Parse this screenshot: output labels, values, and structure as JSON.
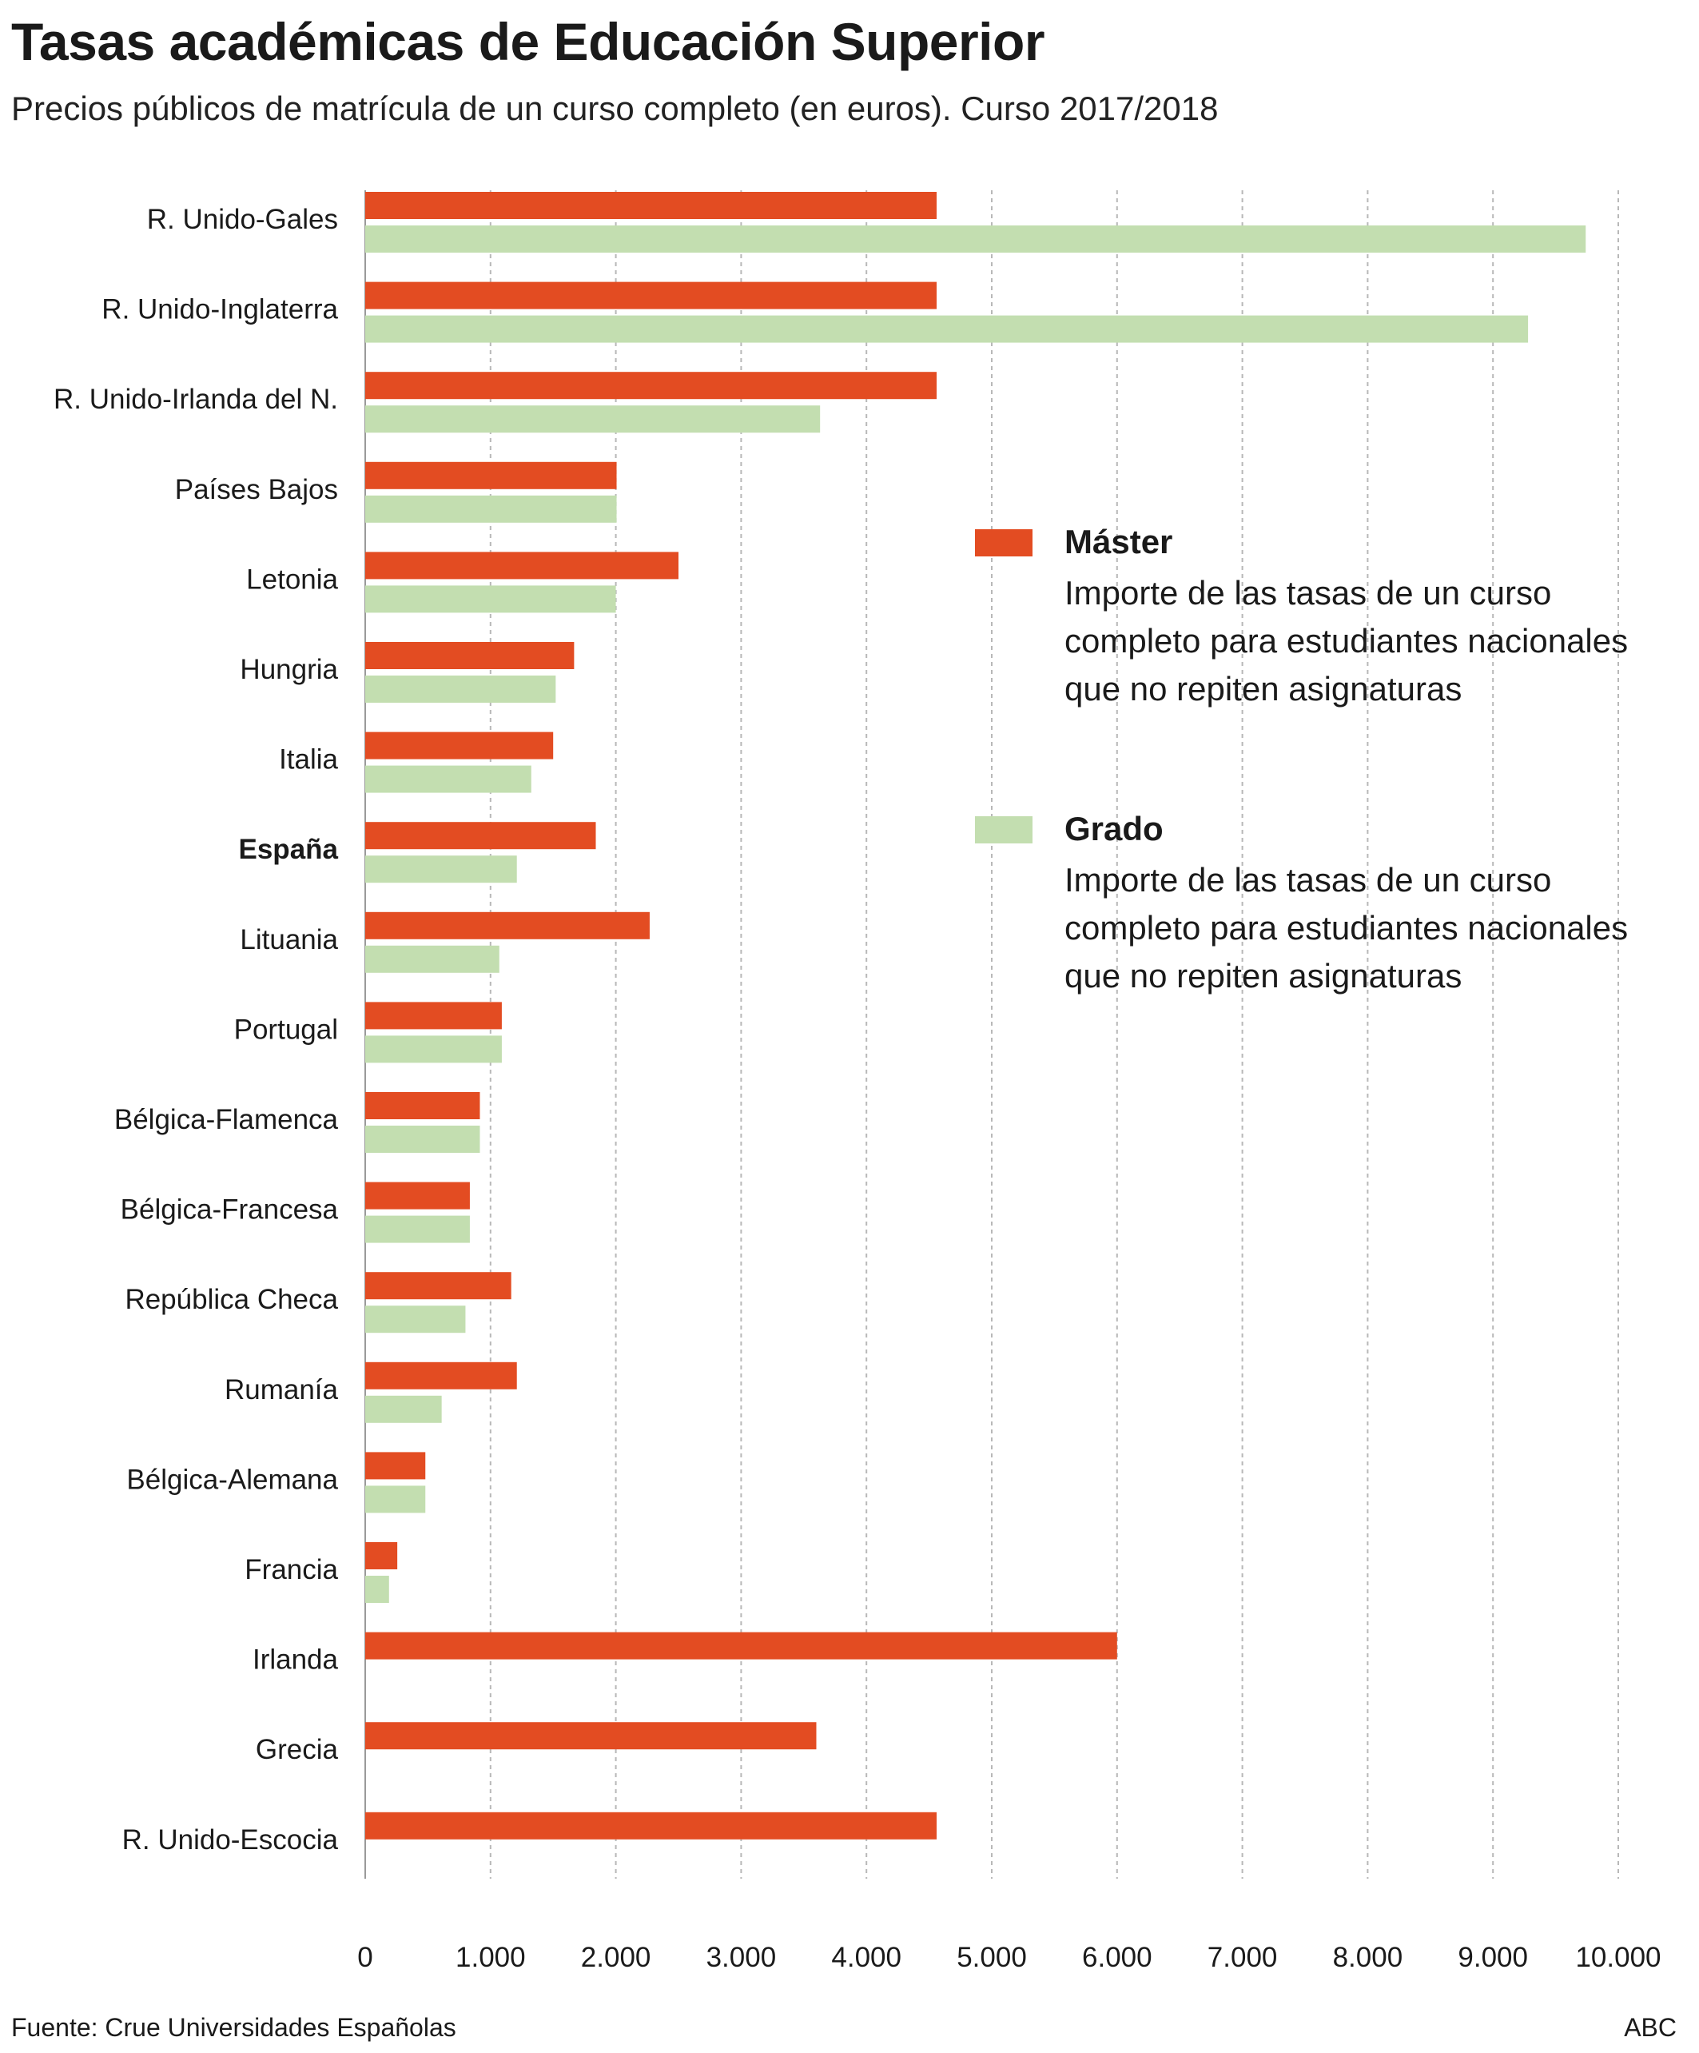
{
  "header": {
    "title": "Tasas académicas de Educación Superior",
    "subtitle": "Precios públicos de matrícula de un curso completo (en euros). Curso 2017/2018"
  },
  "legend": {
    "master": {
      "name": "Máster",
      "description": "Importe de las tasas de un curso completo para estudiantes nacionales que no repiten asignaturas",
      "color": "#e34c22"
    },
    "grado": {
      "name": "Grado",
      "description": "Importe de las tasas de un curso completo para estudiantes nacionales que no repiten asignaturas",
      "color": "#c3deb0"
    }
  },
  "footer": {
    "source": "Fuente: Crue Universidades Españolas",
    "credit": "ABC"
  },
  "chart_data": {
    "type": "bar",
    "orientation": "horizontal",
    "categories": [
      "R. Unido-Gales",
      "R. Unido-Inglaterra",
      "R. Unido-Irlanda del N.",
      "Países Bajos",
      "Letonia",
      "Hungria",
      "Italia",
      "España",
      "Lituania",
      "Portugal",
      "Bélgica-Flamenca",
      "Bélgica-Francesa",
      "República Checa",
      "Rumanía",
      "Bélgica-Alemana",
      "Francia",
      "Irlanda",
      "Grecia",
      "R. Unido-Escocia"
    ],
    "highlighted_category": "España",
    "series": [
      {
        "name": "Máster",
        "color": "#e34c22",
        "values": [
          4560,
          4560,
          4560,
          2006,
          2500,
          1667,
          1500,
          1840,
          2270,
          1090,
          915,
          835,
          1165,
          1210,
          480,
          256,
          6000,
          3600,
          4560
        ]
      },
      {
        "name": "Grado",
        "color": "#c3deb0",
        "values": [
          9740,
          9280,
          3630,
          2006,
          2000,
          1520,
          1325,
          1210,
          1070,
          1090,
          915,
          835,
          800,
          610,
          480,
          190,
          null,
          null,
          null
        ]
      }
    ],
    "xlim": [
      0,
      10000
    ],
    "xticks": [
      0,
      1000,
      2000,
      3000,
      4000,
      5000,
      6000,
      7000,
      8000,
      9000,
      10000
    ],
    "xtick_labels": [
      "0",
      "1.000",
      "2.000",
      "3.000",
      "4.000",
      "5.000",
      "6.000",
      "7.000",
      "8.000",
      "9.000",
      "10.000"
    ],
    "grid": "vertical dashed",
    "legend_position": "right"
  }
}
